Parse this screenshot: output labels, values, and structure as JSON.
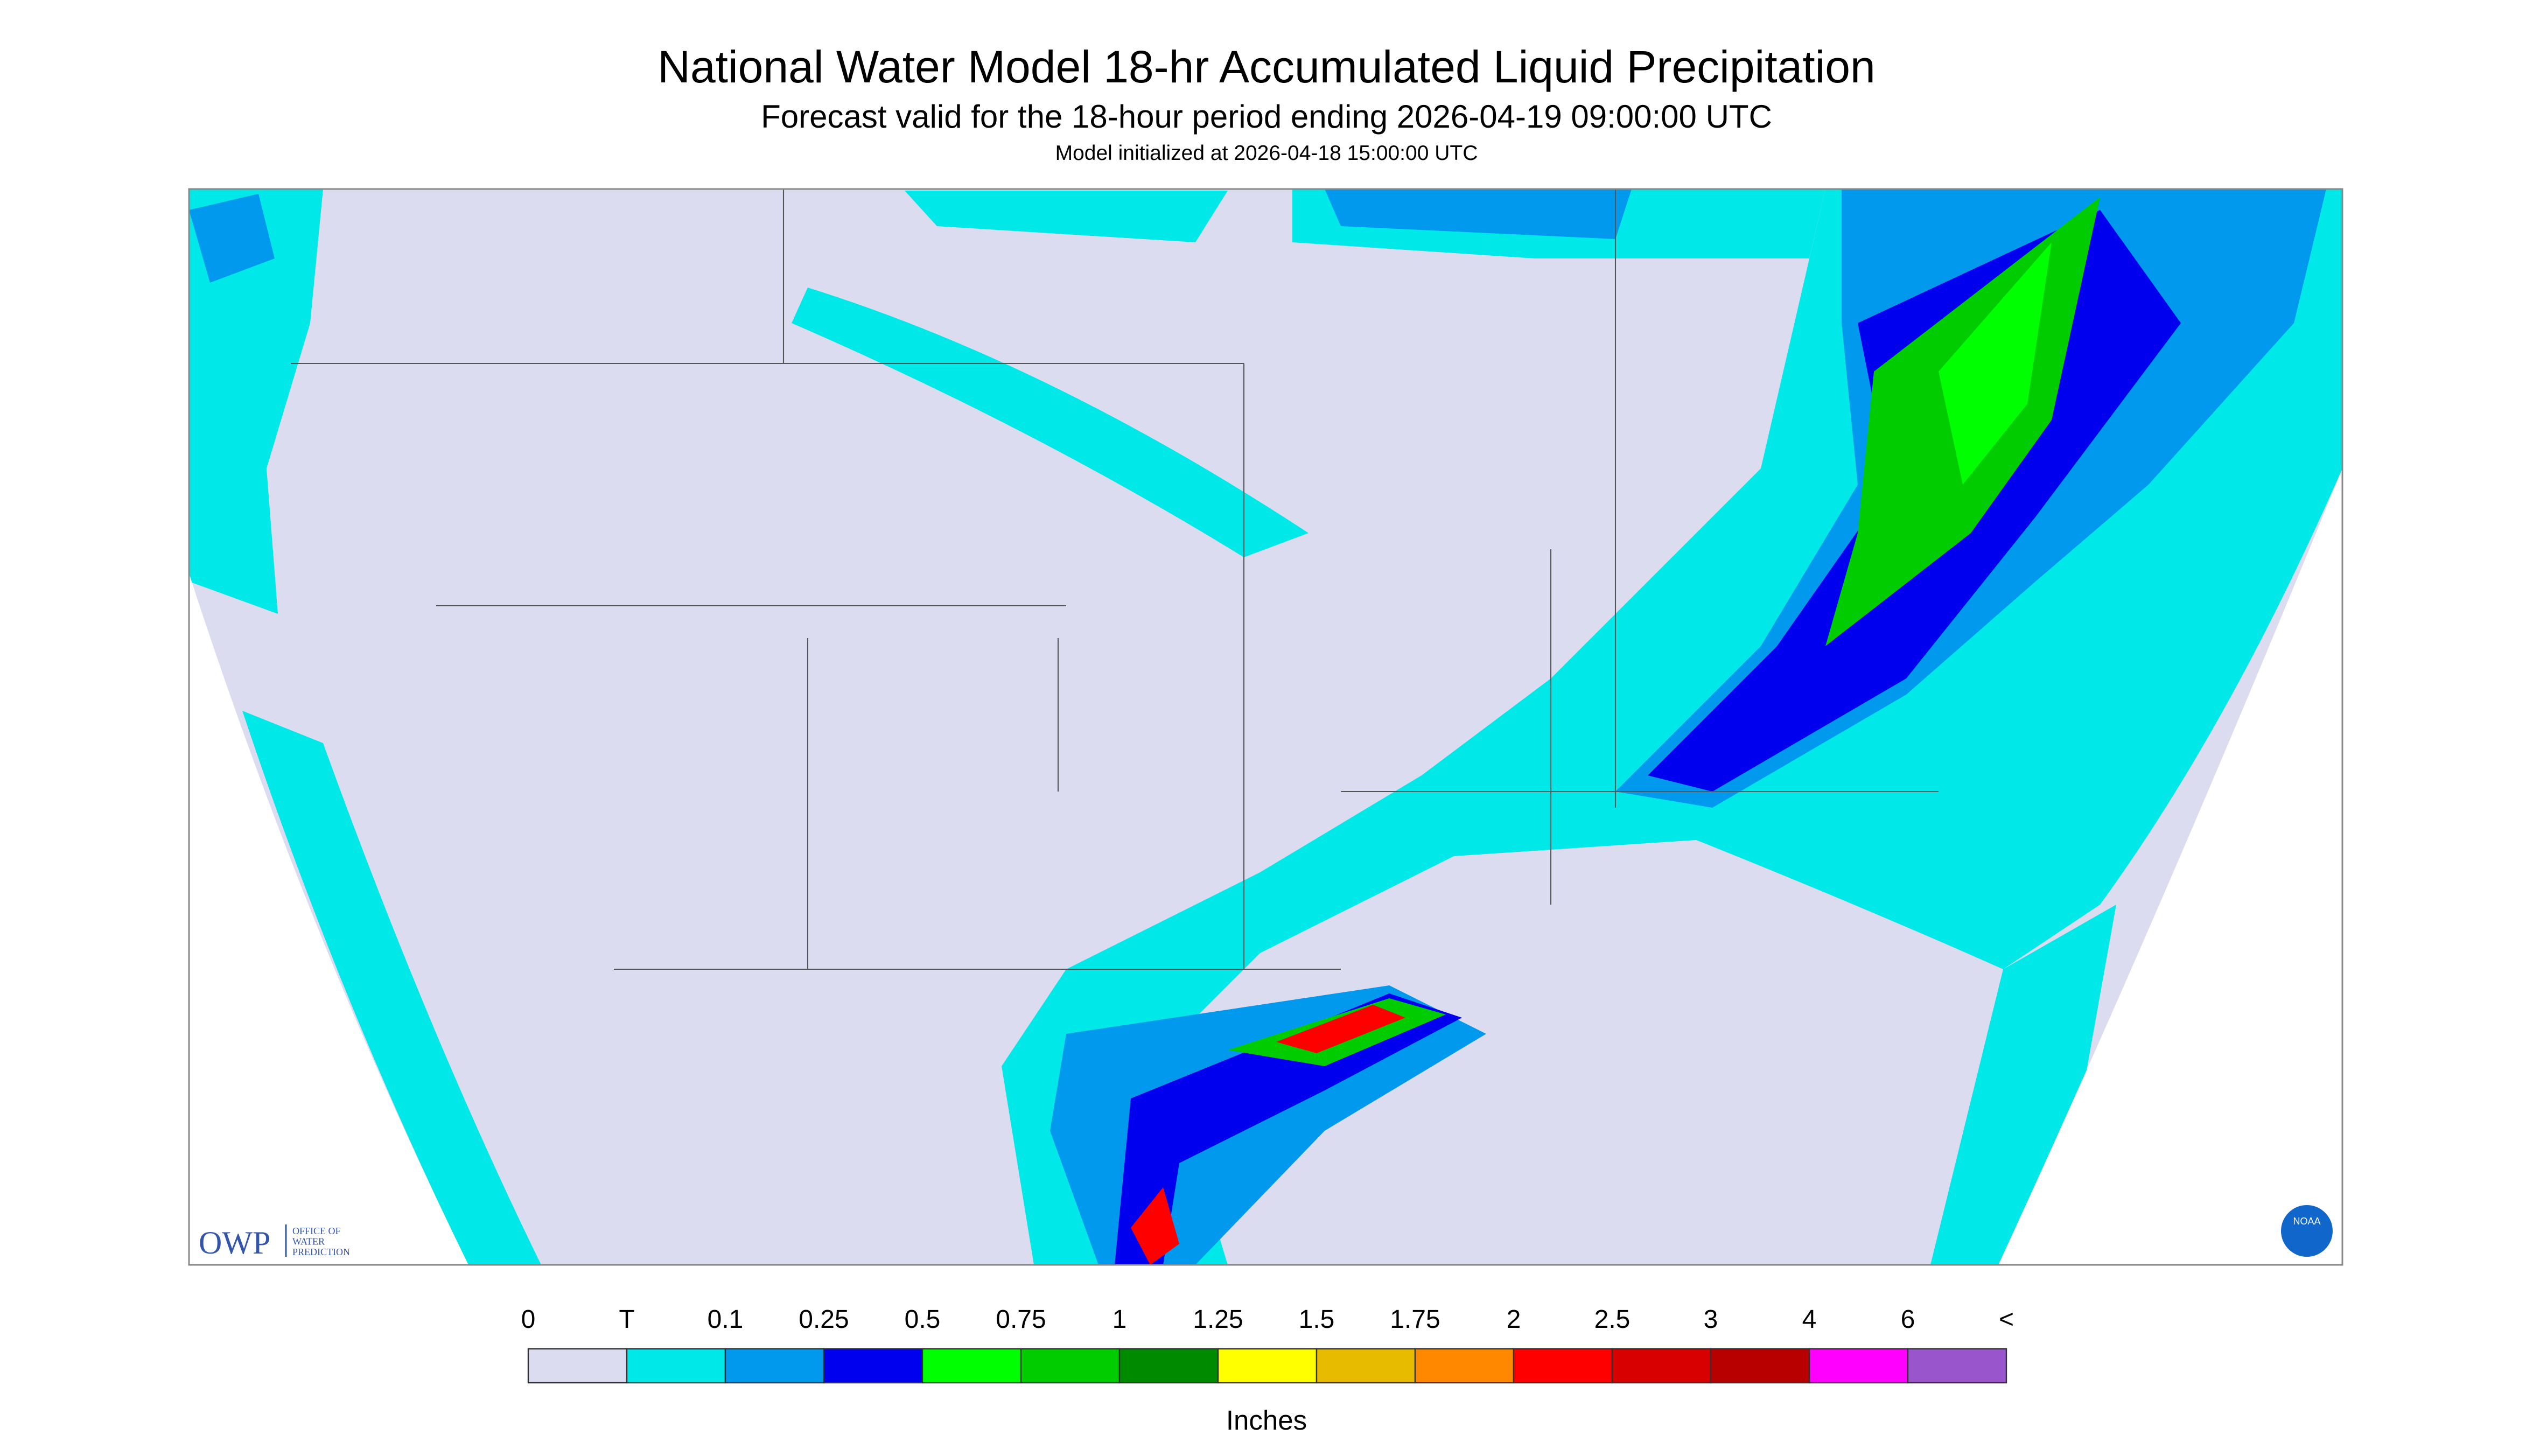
{
  "header": {
    "title": "National Water Model 18-hr Accumulated Liquid Precipitation",
    "subtitle": "Forecast valid for the 18-hour period ending 2026-04-19 09:00:00 UTC",
    "initialized": "Model initialized at 2026-04-18 15:00:00 UTC"
  },
  "legend": {
    "labels": [
      "0",
      "T",
      "0.1",
      "0.25",
      "0.5",
      "0.75",
      "1",
      "1.25",
      "1.5",
      "1.75",
      "2",
      "2.5",
      "3",
      "4",
      "6",
      "<"
    ],
    "colors": [
      "#dcdcf0",
      "#00e8e8",
      "#0099ee",
      "#0000ee",
      "#00ff00",
      "#00cc00",
      "#008a00",
      "#ffff00",
      "#e6bb00",
      "#ff8800",
      "#ff0000",
      "#d80000",
      "#b80000",
      "#ff00ff",
      "#9955cc"
    ],
    "unit": "Inches"
  },
  "logos": {
    "owp": "OWP",
    "owp_lines": [
      "OFFICE OF",
      "WATER",
      "PREDICTION"
    ],
    "noaa": "NOAA"
  }
}
